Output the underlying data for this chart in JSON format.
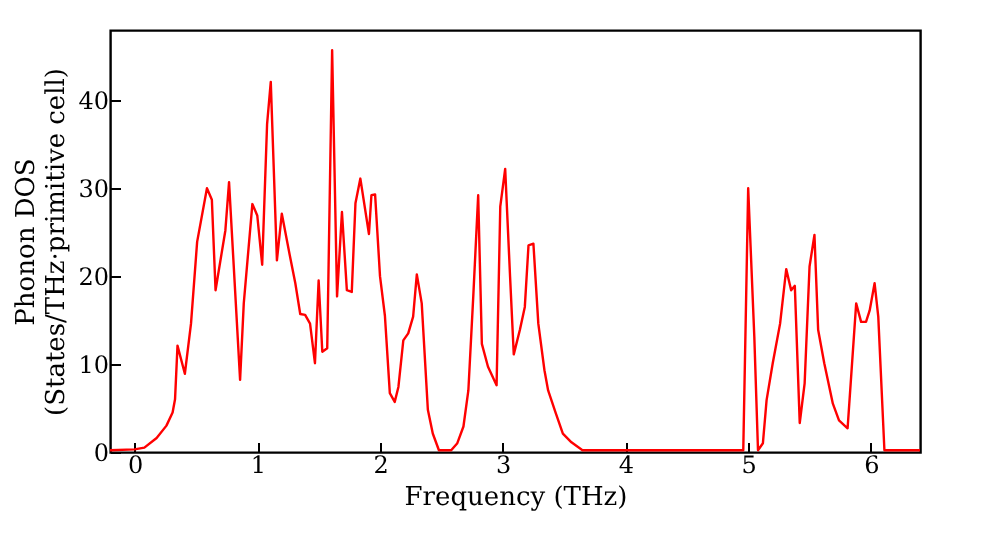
{
  "chart_data": {
    "type": "line",
    "xlabel": "Frequency (THz)",
    "ylabel": "Phonon DOS\n(States/THz·primitive cell)",
    "x": [
      -0.2,
      0,
      0.08,
      0.18,
      0.26,
      0.31,
      0.33,
      0.35,
      0.41,
      0.46,
      0.51,
      0.59,
      0.63,
      0.66,
      0.74,
      0.77,
      0.86,
      0.89,
      0.96,
      1.0,
      1.04,
      1.08,
      1.11,
      1.16,
      1.2,
      1.27,
      1.31,
      1.35,
      1.39,
      1.43,
      1.47,
      1.5,
      1.53,
      1.57,
      1.61,
      1.65,
      1.69,
      1.73,
      1.77,
      1.8,
      1.84,
      1.91,
      1.93,
      1.96,
      2.0,
      2.04,
      2.08,
      2.12,
      2.15,
      2.19,
      2.23,
      2.27,
      2.3,
      2.34,
      2.39,
      2.43,
      2.48,
      2.58,
      2.63,
      2.68,
      2.72,
      2.76,
      2.8,
      2.83,
      2.88,
      2.95,
      2.98,
      3.02,
      3.06,
      3.09,
      3.14,
      3.18,
      3.21,
      3.25,
      3.29,
      3.34,
      3.37,
      3.43,
      3.49,
      3.56,
      3.65,
      4.96,
      5.0,
      5.05,
      5.08,
      5.12,
      5.15,
      5.2,
      5.26,
      5.31,
      5.35,
      5.38,
      5.42,
      5.46,
      5.5,
      5.54,
      5.57,
      5.62,
      5.69,
      5.74,
      5.81,
      5.88,
      5.92,
      5.96,
      5.99,
      6.03,
      6.06,
      6.11,
      6.4
    ],
    "series": [
      {
        "color": "#ff0000",
        "values": [
          0.2,
          0.3,
          0.5,
          1.6,
          3.0,
          4.5,
          6.0,
          12.1,
          8.9,
          14.6,
          23.9,
          30.0,
          28.7,
          18.4,
          25.2,
          30.7,
          8.2,
          16.9,
          28.2,
          26.9,
          21.3,
          37.3,
          42.1,
          21.8,
          27.1,
          22.0,
          19.2,
          15.7,
          15.6,
          14.6,
          10.1,
          19.5,
          11.4,
          11.8,
          45.7,
          17.7,
          27.3,
          18.4,
          18.2,
          28.3,
          31.1,
          24.8,
          29.2,
          29.3,
          20.0,
          15.5,
          6.7,
          5.7,
          7.4,
          12.7,
          13.5,
          15.4,
          20.2,
          16.9,
          4.8,
          2.1,
          0.2,
          0.2,
          1.0,
          2.9,
          7.0,
          17.7,
          29.2,
          12.3,
          9.7,
          7.6,
          27.9,
          32.2,
          19.9,
          11.1,
          13.9,
          16.5,
          23.5,
          23.7,
          14.6,
          9.3,
          7.0,
          4.5,
          2.1,
          1.1,
          0.2,
          0.2,
          30.0,
          13.1,
          0.2,
          1.0,
          5.9,
          10.1,
          14.6,
          20.8,
          18.4,
          18.9,
          3.3,
          7.8,
          21.1,
          24.7,
          13.9,
          10.1,
          5.5,
          3.6,
          2.7,
          16.9,
          14.8,
          14.8,
          16.1,
          19.2,
          15.4,
          0.2,
          0.2
        ]
      }
    ],
    "xlim": [
      -0.2,
      6.4
    ],
    "ylim": [
      0,
      48
    ],
    "xticks": [
      0,
      1,
      2,
      3,
      4,
      5,
      6
    ],
    "yticks": [
      0,
      10,
      20,
      30,
      40
    ]
  }
}
